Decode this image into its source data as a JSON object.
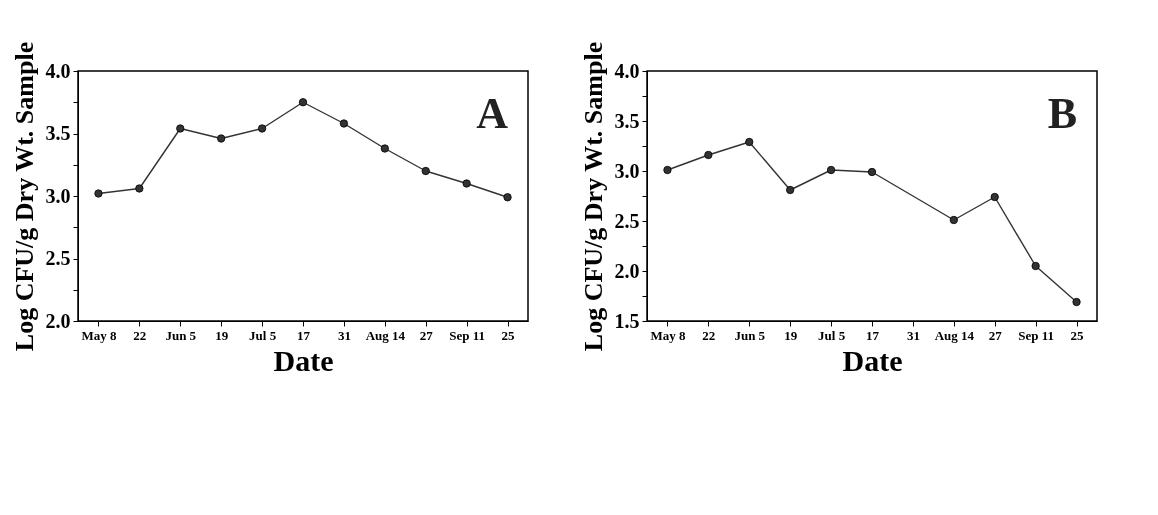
{
  "chart_data": [
    {
      "type": "line",
      "xlabel": "Date",
      "ylabel": "Log CFU/g Dry Wt. Sample",
      "annotations": [
        "A"
      ],
      "categories": [
        "May 8",
        "22",
        "Jun 5",
        "19",
        "Jul 5",
        "17",
        "31",
        "Aug 14",
        "27",
        "Sep 11",
        "25"
      ],
      "series": [
        {
          "color": "#333333",
          "values": [
            3.02,
            3.06,
            3.54,
            3.46,
            3.54,
            3.75,
            3.58,
            3.38,
            3.2,
            3.1,
            2.99
          ]
        }
      ],
      "ylim": [
        2.0,
        4.0
      ],
      "yticks": [
        {
          "value": 2.0,
          "label": "2.0"
        },
        {
          "value": 2.25,
          "label": null
        },
        {
          "value": 2.5,
          "label": "2.5"
        },
        {
          "value": 2.75,
          "label": null
        },
        {
          "value": 3.0,
          "label": "3.0"
        },
        {
          "value": 3.25,
          "label": null
        },
        {
          "value": 3.5,
          "label": "3.5"
        },
        {
          "value": 3.75,
          "label": null
        },
        {
          "value": 4.0,
          "label": "4.0"
        }
      ],
      "marker": "circle",
      "grid": false
    },
    {
      "type": "line",
      "xlabel": "Date",
      "ylabel": "Log CFU/g Dry Wt. Sample",
      "annotations": [
        "B"
      ],
      "categories": [
        "May 8",
        "22",
        "Jun 5",
        "19",
        "Jul 5",
        "17",
        "31",
        "Aug 14",
        "27",
        "Sep 11",
        "25"
      ],
      "series": [
        {
          "color": "#333333",
          "values": [
            3.01,
            3.16,
            3.29,
            2.81,
            3.01,
            2.99,
            null,
            2.51,
            2.74,
            2.05,
            1.69
          ]
        }
      ],
      "ylim": [
        1.5,
        4.0
      ],
      "yticks": [
        {
          "value": 1.5,
          "label": "1.5"
        },
        {
          "value": 1.75,
          "label": null
        },
        {
          "value": 2.0,
          "label": "2.0"
        },
        {
          "value": 2.25,
          "label": null
        },
        {
          "value": 2.5,
          "label": "2.5"
        },
        {
          "value": 2.75,
          "label": null
        },
        {
          "value": 3.0,
          "label": "3.0"
        },
        {
          "value": 3.25,
          "label": null
        },
        {
          "value": 3.5,
          "label": "3.5"
        },
        {
          "value": 3.75,
          "label": null
        },
        {
          "value": 4.0,
          "label": "4.0"
        }
      ],
      "marker": "circle",
      "grid": false
    }
  ]
}
